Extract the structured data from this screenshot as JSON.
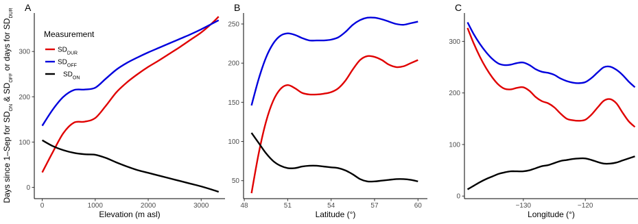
{
  "chart_data": [
    {
      "panel": "A",
      "type": "line",
      "xlabel": "Elevation (m asl)",
      "ylabel": "Days since 1–Sep for SD_ON & SD_OFF or days for SD_DUR",
      "xlim": [
        -150,
        3450
      ],
      "ylim": [
        -25,
        385
      ],
      "xticks": [
        0,
        1000,
        2000,
        3000
      ],
      "yticks": [
        0,
        100,
        200,
        300
      ],
      "x": [
        0,
        200,
        400,
        600,
        800,
        1000,
        1200,
        1400,
        1600,
        1800,
        2000,
        2200,
        2400,
        2600,
        2800,
        3000,
        3200,
        3330
      ],
      "series": [
        {
          "key": "SD_DUR",
          "color": "#e00000",
          "values": [
            33,
            78,
            120,
            143,
            145,
            153,
            180,
            210,
            232,
            250,
            266,
            280,
            295,
            310,
            326,
            342,
            362,
            377
          ]
        },
        {
          "key": "SD_OFF",
          "color": "#0000dd",
          "values": [
            136,
            172,
            200,
            215,
            216,
            220,
            240,
            260,
            275,
            287,
            298,
            308,
            318,
            328,
            338,
            349,
            361,
            369
          ]
        },
        {
          "key": "SD_ON",
          "color": "#000000",
          "values": [
            104,
            91,
            82,
            76,
            73,
            72,
            65,
            55,
            46,
            38,
            32,
            26,
            20,
            14,
            8,
            2,
            -5,
            -10
          ]
        }
      ]
    },
    {
      "panel": "B",
      "type": "line",
      "xlabel": "Latitude (°)",
      "ylabel": "",
      "xlim": [
        47.95,
        60.65
      ],
      "ylim": [
        27,
        264
      ],
      "xticks": [
        48,
        51,
        54,
        57,
        60
      ],
      "yticks": [
        50,
        100,
        150,
        200,
        250
      ],
      "x": [
        48.5,
        49,
        49.5,
        50,
        50.5,
        51,
        51.5,
        52,
        52.5,
        53,
        53.5,
        54,
        54.5,
        55,
        55.5,
        56,
        56.5,
        57,
        57.5,
        58,
        58.5,
        59,
        59.5,
        60
      ],
      "series": [
        {
          "key": "SD_DUR",
          "color": "#e00000",
          "values": [
            34,
            85,
            125,
            152,
            167,
            172,
            168,
            162,
            160,
            160,
            161,
            163,
            168,
            178,
            192,
            204,
            209,
            208,
            204,
            198,
            195,
            196,
            200,
            204
          ]
        },
        {
          "key": "SD_OFF",
          "color": "#0000dd",
          "values": [
            146,
            180,
            207,
            225,
            235,
            238,
            236,
            232,
            229,
            229,
            229,
            230,
            233,
            240,
            249,
            255,
            258,
            258,
            256,
            253,
            250,
            249,
            251,
            253
          ]
        },
        {
          "key": "SD_ON",
          "color": "#000000",
          "values": [
            111,
            98,
            85,
            75,
            69,
            66,
            66,
            68,
            69,
            69,
            68,
            67,
            66,
            63,
            58,
            52,
            49,
            49,
            50,
            51,
            52,
            52,
            51,
            49
          ]
        }
      ]
    },
    {
      "panel": "C",
      "type": "line",
      "xlabel": "Longitude (°)",
      "ylabel": "",
      "xlim": [
        -139.5,
        -111.5
      ],
      "ylim": [
        -5,
        355
      ],
      "xticks": [
        -130,
        -120
      ],
      "yticks": [
        0,
        100,
        200,
        300
      ],
      "x": [
        -139,
        -138,
        -137,
        -136,
        -135,
        -134,
        -133,
        -132,
        -131,
        -130,
        -129,
        -128,
        -127,
        -126,
        -125,
        -124,
        -123,
        -122,
        -121,
        -120,
        -119,
        -118,
        -117,
        -116,
        -115,
        -114,
        -113,
        -112
      ],
      "series": [
        {
          "key": "SD_DUR",
          "color": "#e00000",
          "values": [
            326,
            296,
            270,
            248,
            230,
            216,
            208,
            207,
            210,
            211,
            204,
            192,
            184,
            180,
            172,
            160,
            150,
            147,
            146,
            148,
            158,
            172,
            185,
            188,
            180,
            162,
            145,
            134
          ]
        },
        {
          "key": "SD_OFF",
          "color": "#0000dd",
          "values": [
            337,
            314,
            295,
            279,
            266,
            257,
            254,
            255,
            258,
            259,
            254,
            246,
            241,
            239,
            235,
            228,
            223,
            220,
            219,
            221,
            229,
            240,
            250,
            251,
            245,
            235,
            222,
            211
          ]
        },
        {
          "key": "SD_ON",
          "color": "#000000",
          "values": [
            13,
            20,
            27,
            33,
            38,
            43,
            46,
            48,
            48,
            48,
            50,
            54,
            58,
            60,
            64,
            68,
            70,
            72,
            73,
            73,
            70,
            66,
            63,
            63,
            65,
            69,
            73,
            77
          ]
        }
      ]
    }
  ],
  "legend": {
    "title": "Measurement",
    "items": [
      {
        "main": "SD",
        "sub": "DUR",
        "color": "#e00000"
      },
      {
        "main": "SD",
        "sub": "OFF",
        "color": "#0000dd"
      },
      {
        "main": "SD",
        "sub": "ON",
        "color": "#000000"
      }
    ]
  },
  "ylabel_parts": [
    {
      "t": "Days since 1–Sep for SD"
    },
    {
      "t": "ON",
      "sub": true
    },
    {
      "t": " & SD"
    },
    {
      "t": "OFF",
      "sub": true
    },
    {
      "t": "  or days for SD"
    },
    {
      "t": "DUR",
      "sub": true
    }
  ]
}
